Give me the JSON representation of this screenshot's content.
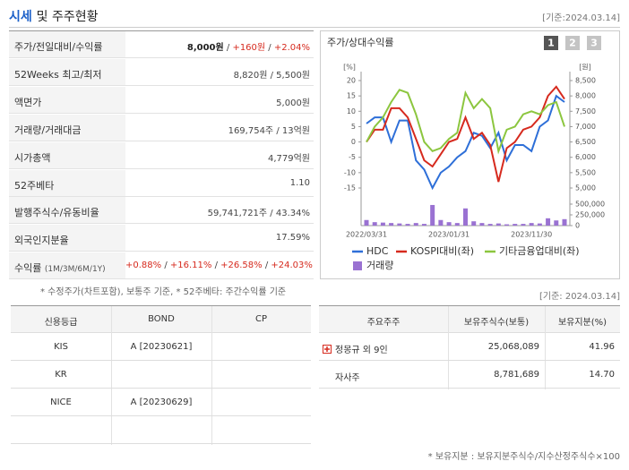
{
  "header": {
    "title_highlight": "시세",
    "title_rest": "및 주주현황",
    "date": "[기준:2024.03.14]"
  },
  "price_table": {
    "rows": [
      {
        "label": "주가/전일대비/수익률",
        "value": [
          {
            "text": "8,000원",
            "style": "bold"
          },
          {
            "text": " / "
          },
          {
            "text": "+160원",
            "style": "up"
          },
          {
            "text": " / "
          },
          {
            "text": "+2.04%",
            "style": "up"
          }
        ]
      },
      {
        "label": "52Weeks 최고/최저",
        "value": [
          {
            "text": "8,820원"
          },
          {
            "text": " / "
          },
          {
            "text": "5,500원"
          }
        ]
      },
      {
        "label": "액면가",
        "value": [
          {
            "text": "5,000원"
          }
        ]
      },
      {
        "label": "거래량/거래대금",
        "value": [
          {
            "text": "169,754주"
          },
          {
            "text": " / "
          },
          {
            "text": "13억원"
          }
        ]
      },
      {
        "label": "시가총액",
        "value": [
          {
            "text": "4,779억원"
          }
        ]
      },
      {
        "label": "52주베타",
        "value": [
          {
            "text": "1.10"
          }
        ]
      },
      {
        "label": "발행주식수/유동비율",
        "value": [
          {
            "text": "59,741,721주"
          },
          {
            "text": " / "
          },
          {
            "text": "43.34%"
          }
        ]
      },
      {
        "label": "외국인지분율",
        "value": [
          {
            "text": "17.59%"
          }
        ]
      },
      {
        "label": "수익률",
        "sublabel": "(1M/3M/6M/1Y)",
        "value": [
          {
            "text": "+0.88%",
            "style": "up"
          },
          {
            "text": " / "
          },
          {
            "text": "+16.11%",
            "style": "up"
          },
          {
            "text": " / "
          },
          {
            "text": "+26.58%",
            "style": "up"
          },
          {
            "text": " / "
          },
          {
            "text": "+24.03%",
            "style": "up"
          }
        ]
      }
    ],
    "note": "* 수정주가(차트포함), 보통주 기준, * 52주베타: 주간수익률 기준"
  },
  "chart_data": {
    "type": "line",
    "title": "주가/상대수익률",
    "tabs": [
      "1",
      "2",
      "3"
    ],
    "ylabel": "[%]",
    "y2label": "[원]",
    "categories": [
      "2022/03/31",
      null,
      null,
      null,
      null,
      null,
      null,
      null,
      null,
      null,
      "2023/01/31",
      null,
      null,
      null,
      null,
      null,
      null,
      null,
      null,
      null,
      "2023/11/30",
      null,
      null,
      null,
      null
    ],
    "ylim": [
      -15,
      20
    ],
    "yticks": [
      20,
      15,
      10,
      5,
      0,
      -5,
      -10,
      -15
    ],
    "y2lim": [
      5000,
      8500
    ],
    "y2ticks": [
      {
        "value": 8500,
        "label": "8,500"
      },
      {
        "value": 8000,
        "label": "8,000"
      },
      {
        "value": 7500,
        "label": "7,500"
      },
      {
        "value": 7000,
        "label": "7,000"
      },
      {
        "value": 6500,
        "label": "6,500"
      },
      {
        "value": 6000,
        "label": "6,000"
      },
      {
        "value": 5500,
        "label": "5,500"
      },
      {
        "value": 5000,
        "label": "5,000"
      }
    ],
    "y3lim": [
      0,
      500000
    ],
    "y3ticks": [
      {
        "value": 500000,
        "label": "500,000"
      },
      {
        "value": 250000,
        "label": "250,000"
      },
      0
    ],
    "series": [
      {
        "name": "HDC",
        "color": "#2e6fd8",
        "axis": "y2",
        "values": [
          7100,
          7300,
          7300,
          6500,
          7200,
          7200,
          5900,
          5600,
          5000,
          5500,
          5700,
          6000,
          6200,
          6800,
          6700,
          6300,
          6800,
          5900,
          6400,
          6400,
          6200,
          7000,
          7200,
          8000,
          7800
        ]
      },
      {
        "name": "KOSPI대비(좌)",
        "color": "#d62a1e",
        "values": [
          0,
          4,
          4,
          11,
          11,
          8,
          1,
          -6,
          -8,
          -4,
          0,
          1,
          8,
          1,
          3,
          -1,
          -13,
          -2,
          0,
          4,
          5,
          8,
          15,
          18,
          14
        ]
      },
      {
        "name": "기타금융업대비(좌)",
        "color": "#8cc63f",
        "values": [
          0,
          5,
          8,
          13,
          17,
          16,
          9,
          0,
          -3,
          -2,
          1,
          3,
          16,
          11,
          14,
          11,
          -3,
          4,
          5,
          9,
          10,
          9,
          12,
          13,
          5
        ]
      },
      {
        "name": "거래량",
        "color": "#9a72d2",
        "axis": "y3",
        "kind": "bar",
        "values": [
          130000,
          80000,
          70000,
          60000,
          50000,
          40000,
          60000,
          40000,
          480000,
          130000,
          80000,
          60000,
          400000,
          100000,
          60000,
          40000,
          50000,
          30000,
          40000,
          40000,
          60000,
          50000,
          170000,
          120000,
          150000
        ]
      }
    ],
    "date": "[기준: 2024.03.14]"
  },
  "credit_table": {
    "headers": [
      "신용등급",
      "BOND",
      "CP"
    ],
    "rows": [
      [
        "KIS",
        "A  [20230621]",
        ""
      ],
      [
        "KR",
        "",
        ""
      ],
      [
        "NICE",
        "A  [20230629]",
        ""
      ],
      [
        "",
        "",
        ""
      ]
    ]
  },
  "holder_table": {
    "headers": [
      "주요주주",
      "보유주식수(보통)",
      "보유지분(%)"
    ],
    "rows": [
      [
        "정몽규 외 9인",
        "25,068,089",
        "41.96"
      ],
      [
        "자사주",
        "8,781,689",
        "14.70"
      ]
    ],
    "note": "* 보유지분 : 보유지분주식수/지수산정주식수×100"
  }
}
